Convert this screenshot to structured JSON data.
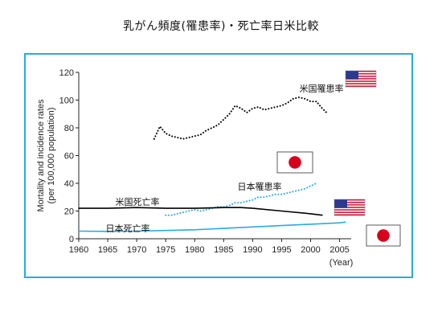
{
  "title": "乳がん頻度(罹患率)・死亡率日米比較",
  "chart_data": {
    "type": "line",
    "title": "乳がん頻度(罹患率)・死亡率日米比較",
    "ylabel": "Mortality and incidence rates (per 100,000 population)",
    "xlabel_unit": "(Year)",
    "xlim": [
      1960,
      2007
    ],
    "ylim": [
      0,
      120
    ],
    "x_ticks": [
      1960,
      1965,
      1970,
      1975,
      1980,
      1985,
      1990,
      1995,
      2000,
      2005
    ],
    "y_ticks": [
      0,
      20,
      40,
      60,
      80,
      100,
      120
    ],
    "grid": false,
    "series": [
      {
        "name": "米国罹患率",
        "color": "#000000",
        "style": "dotted",
        "flag": "us-flag-icon",
        "x": [
          1973,
          1974,
          1975,
          1976,
          1977,
          1978,
          1979,
          1980,
          1981,
          1982,
          1983,
          1984,
          1985,
          1986,
          1987,
          1988,
          1989,
          1990,
          1991,
          1992,
          1993,
          1994,
          1995,
          1996,
          1997,
          1998,
          1999,
          2000,
          2001,
          2002,
          2003
        ],
        "y": [
          72,
          81,
          76,
          74,
          73,
          72,
          73,
          74,
          75,
          78,
          80,
          82,
          86,
          90,
          96,
          94,
          91,
          94,
          95,
          93,
          94,
          95,
          96,
          98,
          101,
          102,
          101,
          99,
          99,
          94,
          90
        ]
      },
      {
        "name": "日本罹患率",
        "color": "#29abe2",
        "style": "dotted",
        "flag": "japan-flag-icon",
        "x": [
          1975,
          1976,
          1977,
          1978,
          1979,
          1980,
          1981,
          1982,
          1983,
          1984,
          1985,
          1986,
          1987,
          1988,
          1989,
          1990,
          1991,
          1992,
          1993,
          1994,
          1995,
          1996,
          1997,
          1998,
          1999,
          2000,
          2001
        ],
        "y": [
          17,
          17,
          18,
          19,
          20,
          21,
          20,
          21,
          22,
          23,
          23,
          24,
          26,
          26,
          27,
          28,
          30,
          30,
          31,
          32,
          32,
          33,
          34,
          35,
          36,
          38,
          40
        ]
      },
      {
        "name": "米国死亡率",
        "color": "#000000",
        "style": "solid",
        "flag": "us-flag-icon",
        "x": [
          1960,
          1965,
          1970,
          1975,
          1980,
          1985,
          1988,
          1990,
          1995,
          2000,
          2002
        ],
        "y": [
          22,
          22,
          22.5,
          22,
          22,
          22.5,
          22.5,
          22,
          20,
          18,
          17
        ]
      },
      {
        "name": "日本死亡率",
        "color": "#29abe2",
        "style": "solid",
        "flag": "japan-flag-icon",
        "x": [
          1960,
          1965,
          1970,
          1975,
          1980,
          1985,
          1990,
          1995,
          2000,
          2005,
          2006
        ],
        "y": [
          5.5,
          5.3,
          5.5,
          6,
          6.5,
          7.5,
          8.5,
          9.5,
          10.5,
          11.5,
          12
        ]
      }
    ]
  }
}
